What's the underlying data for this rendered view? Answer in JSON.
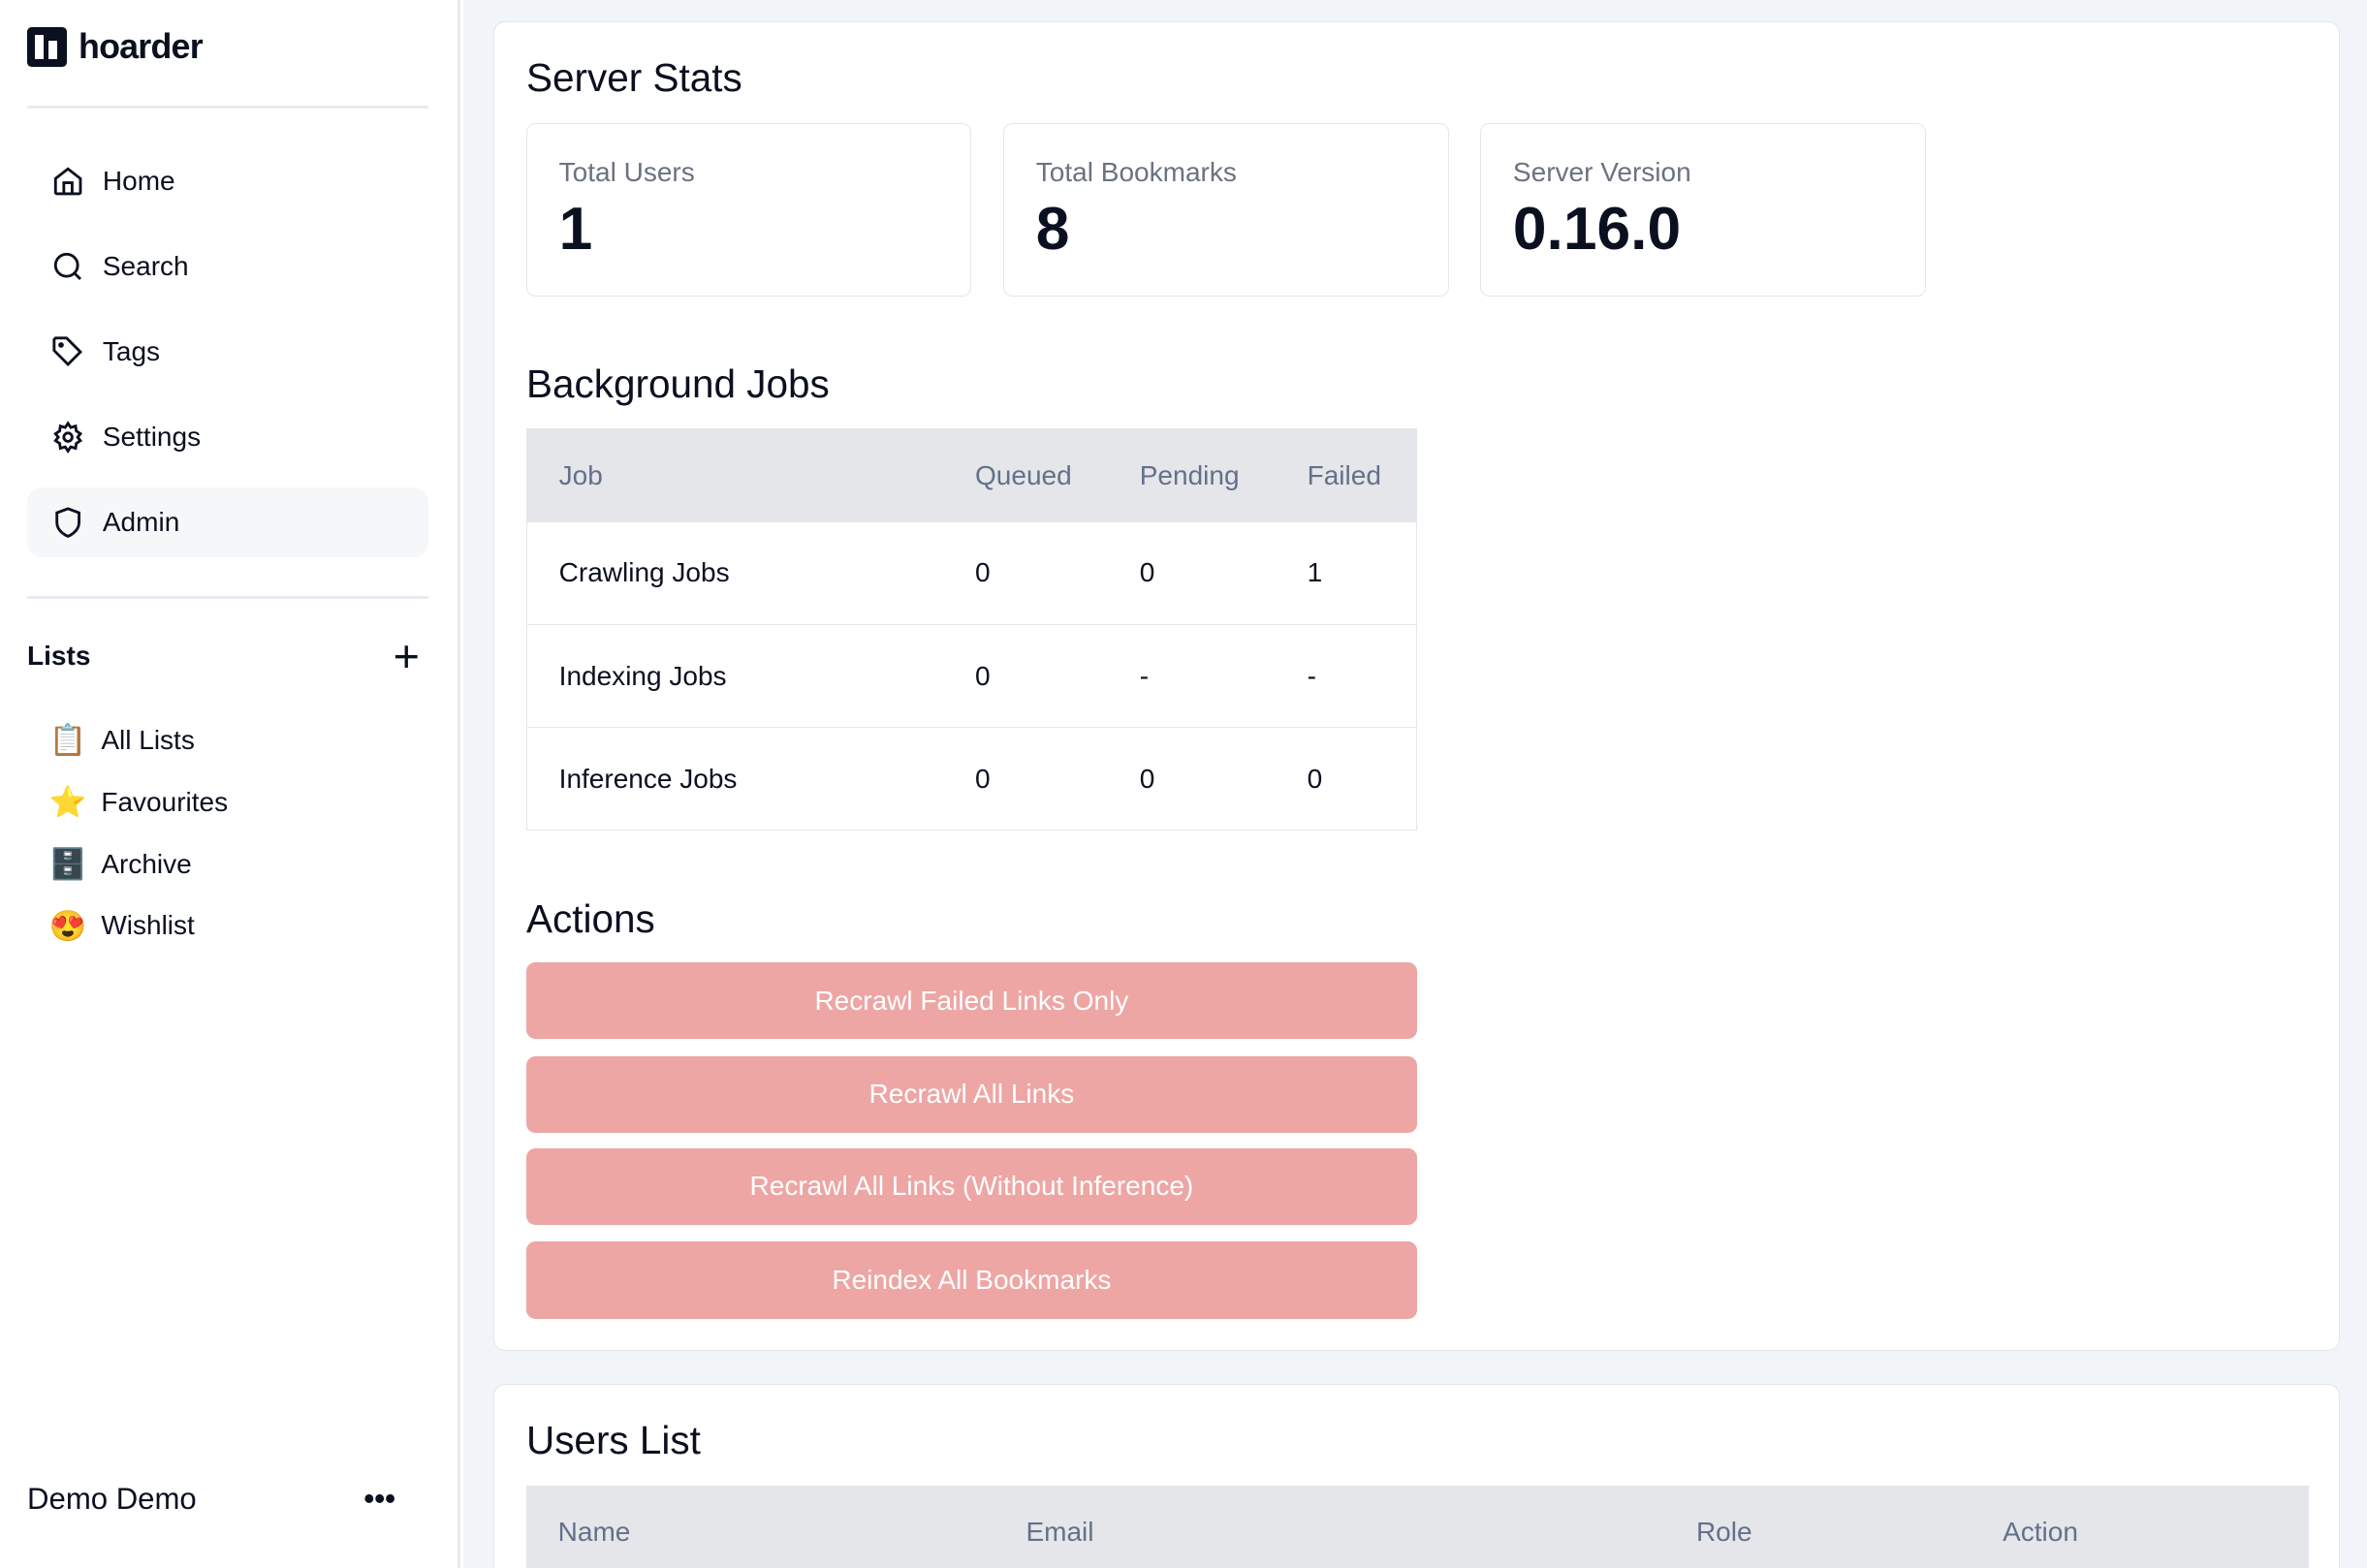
{
  "app": {
    "name": "hoarder"
  },
  "sidebar": {
    "items": [
      {
        "label": "Home",
        "icon": "home-icon"
      },
      {
        "label": "Search",
        "icon": "search-icon"
      },
      {
        "label": "Tags",
        "icon": "tag-icon"
      },
      {
        "label": "Settings",
        "icon": "gear-icon"
      },
      {
        "label": "Admin",
        "icon": "shield-icon",
        "active": true
      }
    ],
    "lists_title": "Lists",
    "lists": [
      {
        "label": "All Lists",
        "emoji": "📋"
      },
      {
        "label": "Favourites",
        "emoji": "⭐"
      },
      {
        "label": "Archive",
        "emoji": "🗄️"
      },
      {
        "label": "Wishlist",
        "emoji": "😍"
      }
    ],
    "user_name": "Demo Demo",
    "more": "•••"
  },
  "stats": {
    "title": "Server Stats",
    "cards": [
      {
        "label": "Total Users",
        "value": "1"
      },
      {
        "label": "Total Bookmarks",
        "value": "8"
      },
      {
        "label": "Server Version",
        "value": "0.16.0"
      }
    ]
  },
  "jobs": {
    "title": "Background Jobs",
    "headers": [
      "Job",
      "Queued",
      "Pending",
      "Failed"
    ],
    "rows": [
      [
        "Crawling Jobs",
        "0",
        "0",
        "1"
      ],
      [
        "Indexing Jobs",
        "0",
        "-",
        "-"
      ],
      [
        "Inference Jobs",
        "0",
        "0",
        "0"
      ]
    ]
  },
  "actions": {
    "title": "Actions",
    "color": "#eda6a4",
    "buttons": [
      "Recrawl Failed Links Only",
      "Recrawl All Links",
      "Recrawl All Links (Without Inference)",
      "Reindex All Bookmarks"
    ]
  },
  "users": {
    "title": "Users List",
    "headers": [
      "Name",
      "Email",
      "Role",
      "Action"
    ]
  }
}
